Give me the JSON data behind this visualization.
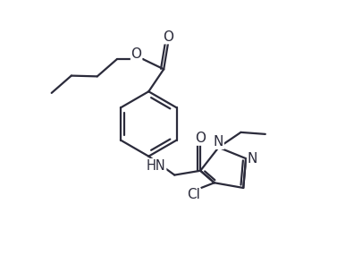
{
  "line_color": "#2b2b3b",
  "bg_color": "#ffffff",
  "line_width": 1.6,
  "font_size": 10,
  "figsize": [
    4.05,
    2.85
  ],
  "dpi": 100,
  "xlim": [
    0,
    10
  ],
  "ylim": [
    0,
    7
  ]
}
